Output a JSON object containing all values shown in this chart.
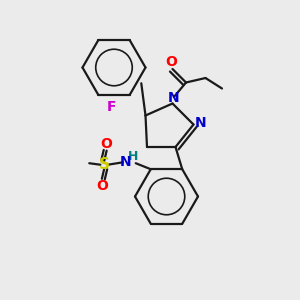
{
  "background_color": "#ebebeb",
  "bond_color": "#1a1a1a",
  "atom_colors": {
    "O": "#ff0000",
    "N": "#0000cc",
    "F": "#cc00cc",
    "S": "#cccc00",
    "H": "#008080",
    "C": "#1a1a1a"
  },
  "figsize": [
    3.0,
    3.0
  ],
  "dpi": 100
}
